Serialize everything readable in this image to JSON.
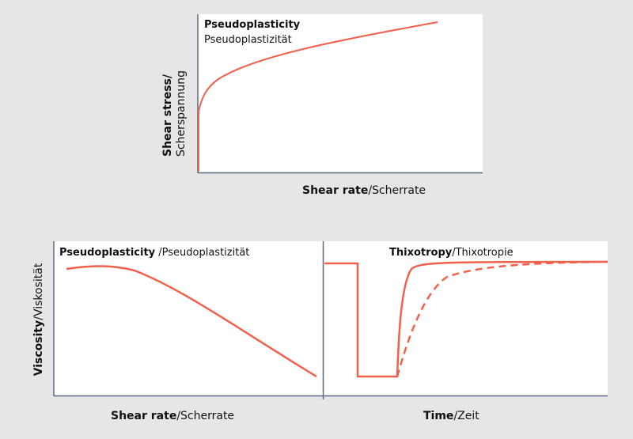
{
  "top": {
    "title_bold": "Pseudoplasticity",
    "title_sub": "Pseudoplastizität",
    "ylabel_bold": "Shear stress/",
    "ylabel_regular": "Scherspannung",
    "xlabel_bold": "Shear rate",
    "xlabel_regular": "/Scherrate"
  },
  "bottom_left": {
    "title_bold": "Pseudoplasticity",
    "title_regular": " /Pseudoplastizität",
    "xlabel_bold": "Shear rate",
    "xlabel_regular": "/Scherrate"
  },
  "bottom_right": {
    "title_bold": "Thixotropy",
    "title_regular": "/Thixotropie",
    "xlabel_bold": "Time",
    "xlabel_regular": "/Zeit"
  },
  "bottom_ylabel": {
    "bold": "Viscosity",
    "regular": "/Viskosität"
  },
  "colors": {
    "curve": "#f0604a",
    "axis": "#5b6b86",
    "panel": "#ffffff",
    "background": "#e6e6e6"
  }
}
